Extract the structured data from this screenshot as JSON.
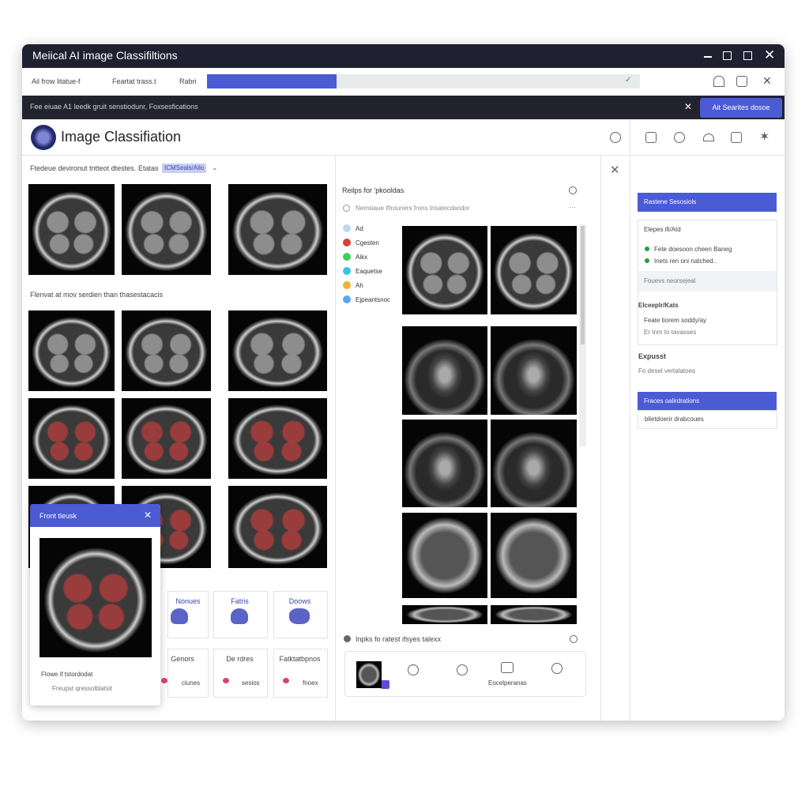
{
  "window": {
    "title": "Meiical AI image Classifiltions"
  },
  "toolbar": {
    "items": [
      "Ail frow litatue-f",
      "Feartat trass.t",
      "Rabri"
    ],
    "progress": 30
  },
  "banner": {
    "text": "Fee eiuae A1 leedk gruit senstiodunr, Foxsesfications",
    "button": "Ait Searites dosoe"
  },
  "header": {
    "title": "Image Classifiation"
  },
  "left_panel": {
    "filter_label": "Ftedeue devironut tntteot dtestes.",
    "status_label": "Etatas",
    "status_chip": "ICMSeals/Ailo",
    "section_title": "Flenvat at mov serdien than thasestacacis"
  },
  "popup": {
    "title": "Front tleusk",
    "caption": "Flowe if tstordodat",
    "action": "Freupst qressolblatsit"
  },
  "cards": [
    {
      "title": "Nonues"
    },
    {
      "title": "Fatris"
    },
    {
      "title": "Doows"
    },
    {
      "title": "Genors",
      "sub": "ciunes"
    },
    {
      "title": "De rdres",
      "sub": "sesios"
    },
    {
      "title": "Fatktatbpnos",
      "sub": "fnoex"
    }
  ],
  "results_panel": {
    "title": "Reilps for 'pkooldas",
    "search": "Nemsiaue iftrouners frons trisatecdandor",
    "legend": [
      {
        "label": "Ad",
        "color": "#b9d7f5"
      },
      {
        "label": "Cgesten",
        "color": "#d9413b"
      },
      {
        "label": "Aikx",
        "color": "#3fcf5a"
      },
      {
        "label": "Eaquetse",
        "color": "#38c3e8"
      },
      {
        "label": "Ah",
        "color": "#f2b431"
      },
      {
        "label": "Ejpeantsnoc",
        "color": "#5aa6ee"
      }
    ],
    "footer_title": "Inpks fo ratest ifsyes talexx",
    "footer_action": "Eocelperanas"
  },
  "side_panel": {
    "header": "Rastene Sesosiols",
    "section1": "Elepes ifi/Atd",
    "item1": "Fete doesoon cheen Baneg",
    "item2": "Inets ren oni natched..",
    "note1": "Fouevs neorsejeal",
    "section2": "Elceeplr/Kats",
    "item3": "Feate tiorem soddy/ay",
    "item4": "Er tnm to tavasses",
    "section3": "Expusst",
    "note3": "Fo desel vertalatoes",
    "box_header": "Fraces oalirdrations",
    "box_text": "blietdoerir drabcoues"
  }
}
